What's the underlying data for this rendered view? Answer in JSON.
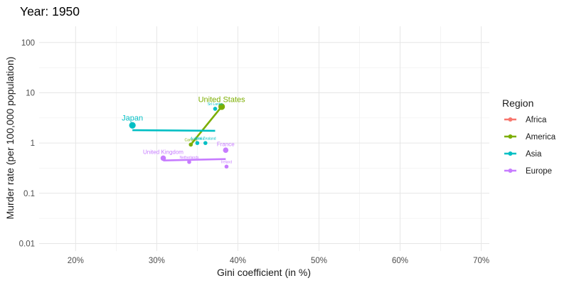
{
  "chart_data": {
    "type": "scatter",
    "title": "Year: 1950",
    "xlabel": "Gini coefficient (in %)",
    "ylabel": "Murder rate (per 100,000 population)",
    "x_scale": "linear",
    "y_scale": "log10",
    "xlim": [
      15.5,
      71
    ],
    "ylim": [
      0.0071,
      210
    ],
    "x_ticks": [
      20,
      30,
      40,
      50,
      60,
      70
    ],
    "x_tick_labels": [
      "20%",
      "30%",
      "40%",
      "50%",
      "60%",
      "70%"
    ],
    "y_ticks": [
      0.01,
      0.1,
      1,
      10,
      100
    ],
    "y_tick_labels": [
      "0.01",
      "0.1",
      "1",
      "10",
      "100"
    ],
    "grid": true,
    "legend_position": "right",
    "legend_title": "Region",
    "series": [
      {
        "name": "Africa",
        "color": "#F8766D",
        "points": [],
        "trend": null
      },
      {
        "name": "America",
        "color": "#7CAE00",
        "points": [
          {
            "label": "United States",
            "x": 38.0,
            "y": 5.3,
            "size": "large"
          },
          {
            "label": "Canada",
            "x": 34.2,
            "y": 0.93,
            "size": "small"
          }
        ],
        "trend": {
          "x": [
            34.2,
            38.0
          ],
          "y": [
            0.93,
            5.3
          ]
        }
      },
      {
        "name": "Asia",
        "color": "#00BFC4",
        "points": [
          {
            "label": "Japan",
            "x": 27.0,
            "y": 2.25,
            "size": "large"
          },
          {
            "label": "Sri Lanka",
            "x": 37.2,
            "y": 4.8,
            "size": "small"
          },
          {
            "label": "Australia",
            "x": 35.0,
            "y": 1.0,
            "size": "small"
          },
          {
            "label": "New Zealand",
            "x": 36.0,
            "y": 1.0,
            "size": "small"
          }
        ],
        "trend": {
          "x": [
            27.0,
            37.2
          ],
          "y": [
            1.8,
            1.75
          ]
        }
      },
      {
        "name": "Europe",
        "color": "#C77CFF",
        "points": [
          {
            "label": "United Kingdom",
            "x": 30.8,
            "y": 0.5,
            "size": "medium"
          },
          {
            "label": "France",
            "x": 38.5,
            "y": 0.72,
            "size": "medium"
          },
          {
            "label": "Netherlands",
            "x": 34.0,
            "y": 0.42,
            "size": "small"
          },
          {
            "label": "Ireland",
            "x": 38.6,
            "y": 0.34,
            "size": "small"
          }
        ],
        "trend": {
          "x": [
            30.8,
            38.5
          ],
          "y": [
            0.45,
            0.48
          ]
        }
      }
    ]
  }
}
